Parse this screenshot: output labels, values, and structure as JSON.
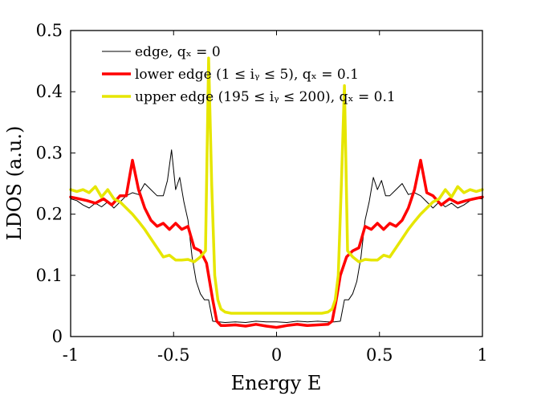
{
  "chart_data": {
    "type": "line",
    "xlabel": "Energy E",
    "ylabel": "LDOS (a.u.)",
    "xlim": [
      -1,
      1
    ],
    "ylim": [
      0,
      0.5
    ],
    "xticks": [
      -1,
      -0.5,
      0,
      0.5,
      1
    ],
    "xtick_labels": [
      "-1",
      "-0.5",
      "0",
      "0.5",
      "1"
    ],
    "yticks": [
      0,
      0.1,
      0.2,
      0.3,
      0.4,
      0.5
    ],
    "ytick_labels": [
      "0",
      "0.1",
      "0.2",
      "0.3",
      "0.4",
      "0.5"
    ],
    "grid": false,
    "legend_position": "top-left",
    "series": [
      {
        "name": "edge, q_x = 0",
        "legend_label": "edge, qₓ = 0",
        "color": "#000000",
        "line_width": 1,
        "x": [
          -1,
          -0.97,
          -0.94,
          -0.91,
          -0.88,
          -0.85,
          -0.82,
          -0.79,
          -0.76,
          -0.73,
          -0.7,
          -0.67,
          -0.64,
          -0.61,
          -0.58,
          -0.55,
          -0.53,
          -0.51,
          -0.49,
          -0.47,
          -0.45,
          -0.43,
          -0.41,
          -0.39,
          -0.37,
          -0.35,
          -0.33,
          -0.31,
          -0.28,
          -0.25,
          -0.2,
          -0.15,
          -0.1,
          -0.05,
          0,
          0.05,
          0.1,
          0.15,
          0.2,
          0.25,
          0.28,
          0.31,
          0.33,
          0.35,
          0.37,
          0.39,
          0.41,
          0.43,
          0.45,
          0.47,
          0.49,
          0.51,
          0.53,
          0.55,
          0.58,
          0.61,
          0.64,
          0.67,
          0.7,
          0.73,
          0.76,
          0.79,
          0.82,
          0.85,
          0.88,
          0.91,
          0.94,
          0.97,
          1
        ],
        "y": [
          0.225,
          0.222,
          0.215,
          0.21,
          0.218,
          0.212,
          0.22,
          0.21,
          0.22,
          0.23,
          0.235,
          0.232,
          0.25,
          0.24,
          0.23,
          0.23,
          0.255,
          0.305,
          0.24,
          0.26,
          0.22,
          0.19,
          0.13,
          0.09,
          0.07,
          0.06,
          0.06,
          0.025,
          0.024,
          0.023,
          0.024,
          0.023,
          0.025,
          0.024,
          0.024,
          0.023,
          0.025,
          0.024,
          0.025,
          0.024,
          0.024,
          0.025,
          0.06,
          0.06,
          0.07,
          0.09,
          0.13,
          0.19,
          0.22,
          0.26,
          0.24,
          0.255,
          0.23,
          0.23,
          0.24,
          0.25,
          0.232,
          0.235,
          0.23,
          0.22,
          0.21,
          0.22,
          0.212,
          0.218,
          0.21,
          0.215,
          0.222,
          0.225,
          0.225
        ]
      },
      {
        "name": "lower edge (1 ≤ i_y ≤ 5), q_x = 0.1",
        "legend_label": "lower edge (1 ≤ iᵧ ≤ 5), qₓ = 0.1",
        "color": "#ff0000",
        "line_width": 3.5,
        "x": [
          -1,
          -0.96,
          -0.92,
          -0.88,
          -0.84,
          -0.8,
          -0.76,
          -0.73,
          -0.7,
          -0.67,
          -0.64,
          -0.61,
          -0.58,
          -0.55,
          -0.52,
          -0.49,
          -0.46,
          -0.43,
          -0.4,
          -0.37,
          -0.34,
          -0.31,
          -0.29,
          -0.27,
          -0.25,
          -0.2,
          -0.15,
          -0.1,
          -0.05,
          0,
          0.05,
          0.1,
          0.15,
          0.2,
          0.25,
          0.27,
          0.29,
          0.31,
          0.34,
          0.37,
          0.4,
          0.43,
          0.46,
          0.49,
          0.52,
          0.55,
          0.58,
          0.61,
          0.64,
          0.67,
          0.7,
          0.73,
          0.76,
          0.8,
          0.84,
          0.88,
          0.92,
          0.96,
          1
        ],
        "y": [
          0.228,
          0.225,
          0.222,
          0.218,
          0.225,
          0.215,
          0.23,
          0.23,
          0.288,
          0.24,
          0.21,
          0.19,
          0.18,
          0.185,
          0.175,
          0.185,
          0.175,
          0.18,
          0.145,
          0.14,
          0.12,
          0.06,
          0.025,
          0.018,
          0.018,
          0.019,
          0.017,
          0.02,
          0.017,
          0.015,
          0.018,
          0.02,
          0.018,
          0.019,
          0.02,
          0.025,
          0.06,
          0.1,
          0.13,
          0.14,
          0.145,
          0.18,
          0.175,
          0.185,
          0.175,
          0.185,
          0.18,
          0.19,
          0.21,
          0.24,
          0.288,
          0.235,
          0.23,
          0.215,
          0.225,
          0.218,
          0.222,
          0.225,
          0.228
        ]
      },
      {
        "name": "upper edge (195 ≤ i_y ≤ 200), q_x = 0.1",
        "legend_label": "upper edge (195 ≤ iᵧ ≤ 200), qₓ = 0.1",
        "color": "#e6e600",
        "line_width": 3.5,
        "x": [
          -1,
          -0.97,
          -0.94,
          -0.91,
          -0.88,
          -0.85,
          -0.82,
          -0.79,
          -0.76,
          -0.73,
          -0.7,
          -0.67,
          -0.64,
          -0.61,
          -0.58,
          -0.55,
          -0.52,
          -0.49,
          -0.46,
          -0.43,
          -0.4,
          -0.37,
          -0.345,
          -0.33,
          -0.315,
          -0.3,
          -0.285,
          -0.27,
          -0.25,
          -0.22,
          -0.18,
          -0.14,
          -0.1,
          -0.05,
          0,
          0.05,
          0.1,
          0.14,
          0.18,
          0.22,
          0.25,
          0.27,
          0.285,
          0.3,
          0.315,
          0.33,
          0.345,
          0.37,
          0.4,
          0.43,
          0.46,
          0.49,
          0.52,
          0.55,
          0.58,
          0.61,
          0.64,
          0.67,
          0.7,
          0.73,
          0.76,
          0.79,
          0.82,
          0.85,
          0.88,
          0.91,
          0.94,
          0.97,
          1
        ],
        "y": [
          0.24,
          0.237,
          0.24,
          0.235,
          0.245,
          0.228,
          0.24,
          0.225,
          0.22,
          0.21,
          0.2,
          0.188,
          0.175,
          0.16,
          0.145,
          0.13,
          0.133,
          0.125,
          0.125,
          0.126,
          0.122,
          0.13,
          0.14,
          0.455,
          0.25,
          0.1,
          0.06,
          0.045,
          0.04,
          0.038,
          0.038,
          0.038,
          0.038,
          0.038,
          0.038,
          0.038,
          0.038,
          0.038,
          0.038,
          0.038,
          0.04,
          0.045,
          0.06,
          0.1,
          0.25,
          0.41,
          0.14,
          0.13,
          0.122,
          0.126,
          0.125,
          0.125,
          0.133,
          0.13,
          0.145,
          0.16,
          0.175,
          0.188,
          0.2,
          0.21,
          0.22,
          0.225,
          0.24,
          0.228,
          0.245,
          0.235,
          0.24,
          0.237,
          0.24
        ]
      }
    ]
  }
}
